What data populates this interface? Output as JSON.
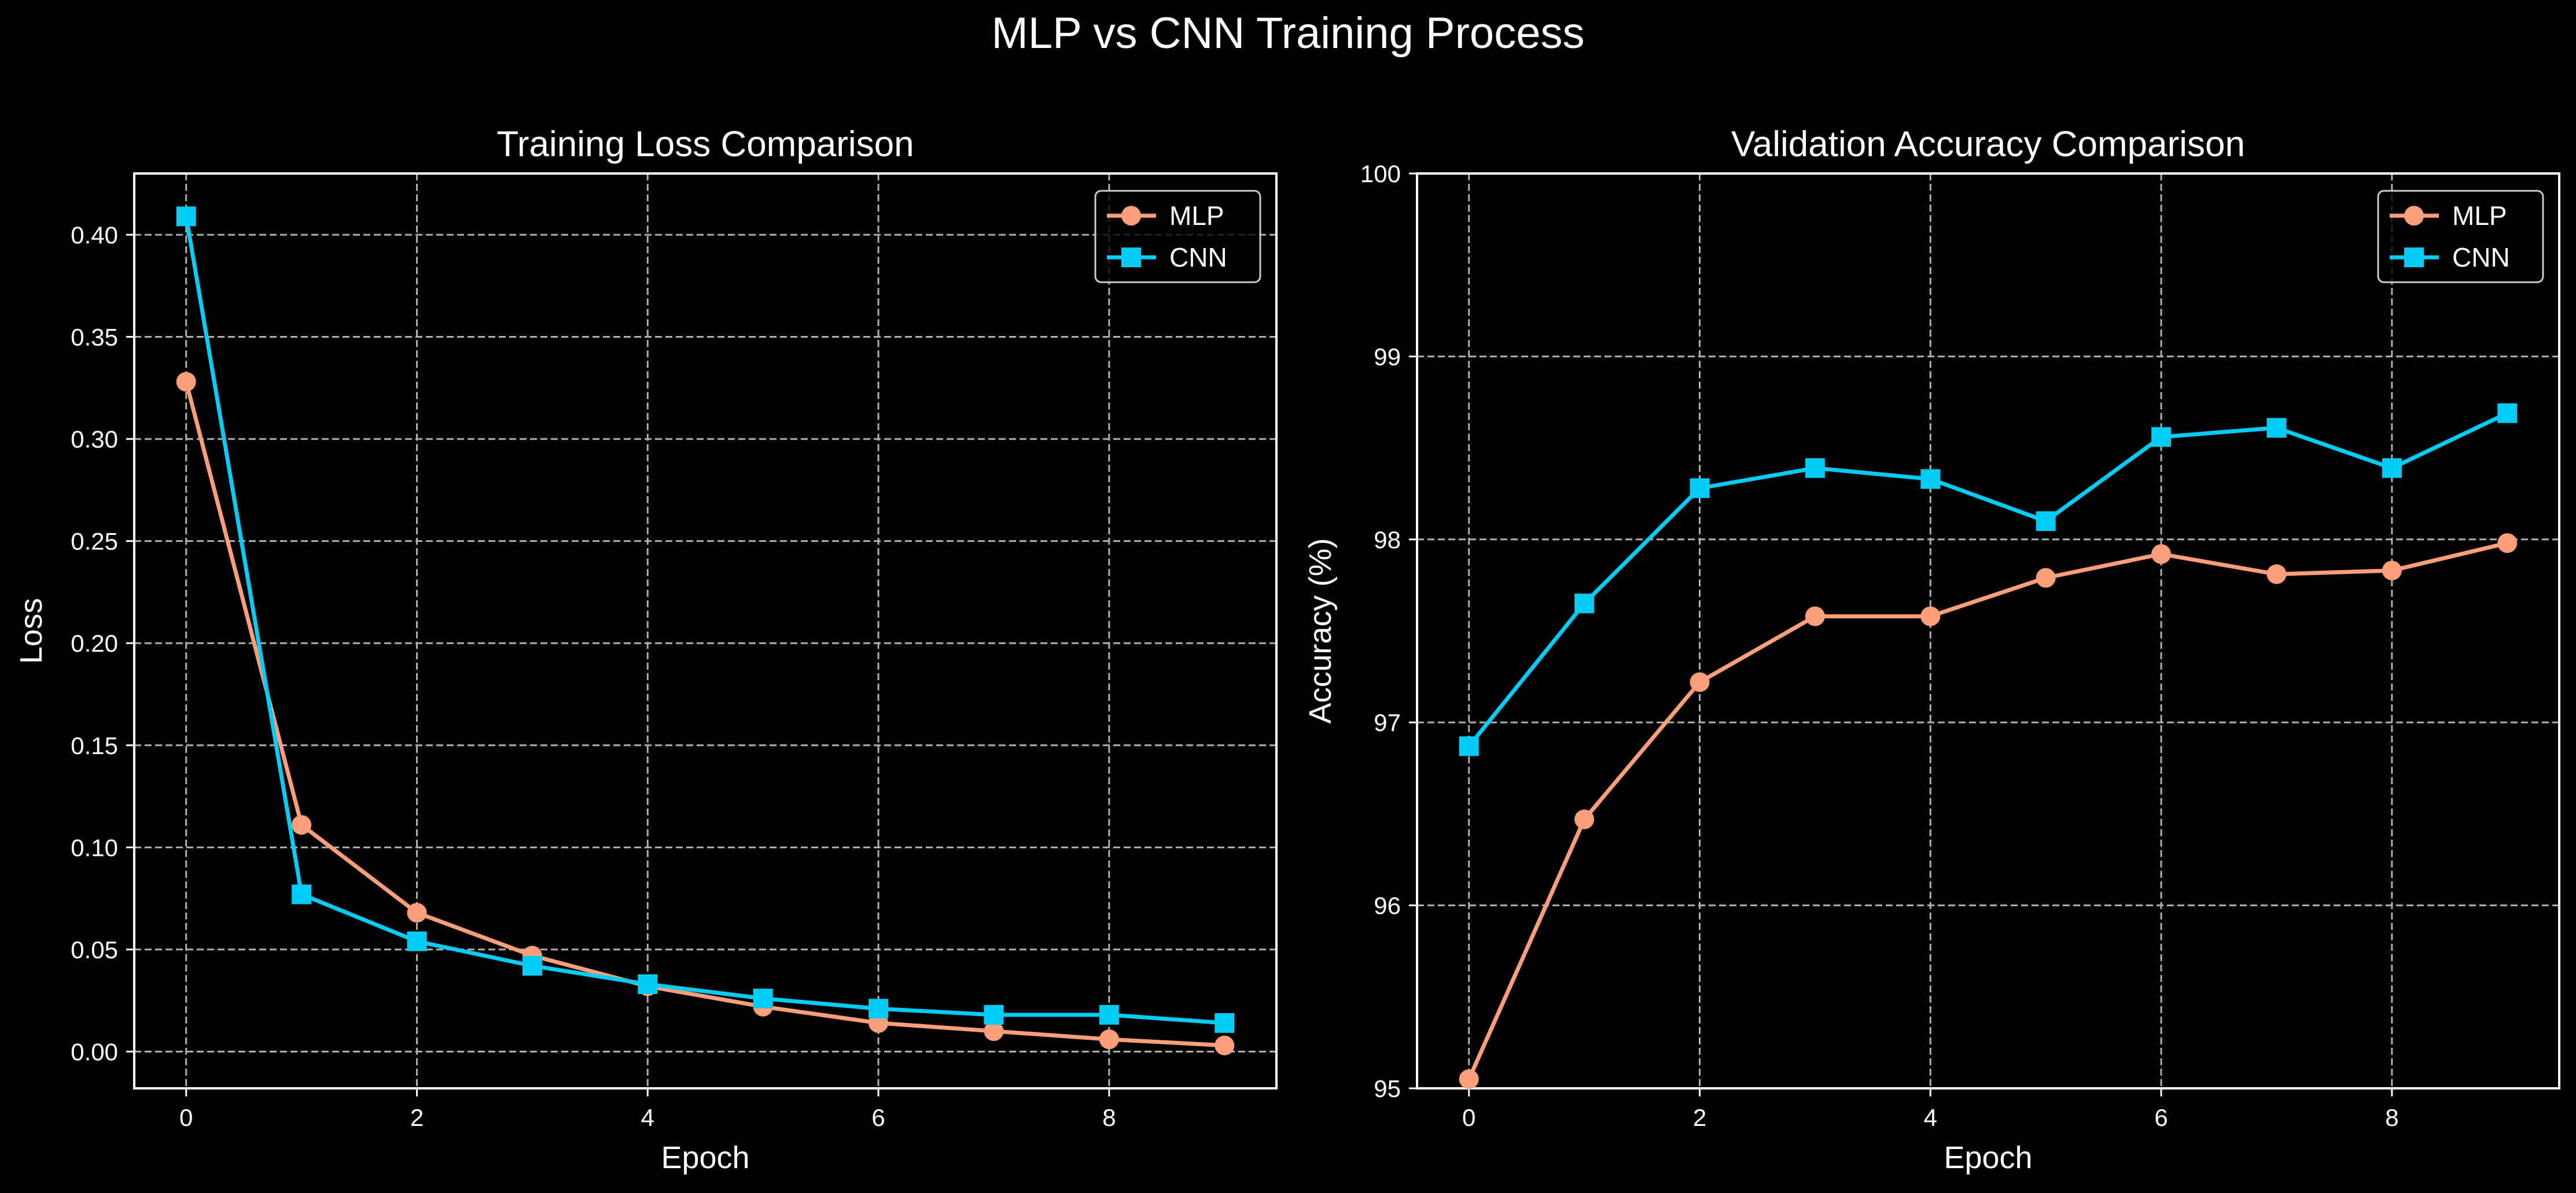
{
  "suptitle": "MLP vs CNN Training Process",
  "colors": {
    "background": "#000000",
    "axes": "#ffffff",
    "grid": "#b0b0b0",
    "mlp": "#ff9e7a",
    "cnn": "#00ccf5"
  },
  "chart_data": [
    {
      "type": "line",
      "title": "Training Loss Comparison",
      "xlabel": "Epoch",
      "ylabel": "Loss",
      "x": [
        0,
        1,
        2,
        3,
        4,
        5,
        6,
        7,
        8,
        9
      ],
      "xlim": [
        -0.45,
        9.45
      ],
      "ylim": [
        -0.018,
        0.43
      ],
      "xticks": [
        0,
        2,
        4,
        6,
        8
      ],
      "yticks": [
        0.0,
        0.05,
        0.1,
        0.15,
        0.2,
        0.25,
        0.3,
        0.35,
        0.4
      ],
      "ytick_labels": [
        "0.00",
        "0.05",
        "0.10",
        "0.15",
        "0.20",
        "0.25",
        "0.30",
        "0.35",
        "0.40"
      ],
      "grid": true,
      "legend_position": "upper right",
      "series": [
        {
          "name": "MLP",
          "marker": "circle",
          "color": "#ff9e7a",
          "values": [
            0.328,
            0.111,
            0.068,
            0.047,
            0.032,
            0.022,
            0.014,
            0.01,
            0.006,
            0.003
          ]
        },
        {
          "name": "CNN",
          "marker": "square",
          "color": "#00ccf5",
          "values": [
            0.409,
            0.077,
            0.054,
            0.042,
            0.033,
            0.026,
            0.021,
            0.018,
            0.018,
            0.014
          ]
        }
      ]
    },
    {
      "type": "line",
      "title": "Validation Accuracy Comparison",
      "xlabel": "Epoch",
      "ylabel": "Accuracy (%)",
      "x": [
        0,
        1,
        2,
        3,
        4,
        5,
        6,
        7,
        8,
        9
      ],
      "xlim": [
        -0.45,
        9.45
      ],
      "ylim": [
        95,
        100
      ],
      "xticks": [
        0,
        2,
        4,
        6,
        8
      ],
      "yticks": [
        95,
        96,
        97,
        98,
        99,
        100
      ],
      "ytick_labels": [
        "95",
        "96",
        "97",
        "98",
        "99",
        "100"
      ],
      "grid": true,
      "legend_position": "upper right",
      "series": [
        {
          "name": "MLP",
          "marker": "circle",
          "color": "#ff9e7a",
          "values": [
            95.05,
            96.47,
            97.22,
            97.58,
            97.58,
            97.79,
            97.92,
            97.81,
            97.83,
            97.98
          ]
        },
        {
          "name": "CNN",
          "marker": "square",
          "color": "#00ccf5",
          "values": [
            96.87,
            97.65,
            98.28,
            98.39,
            98.33,
            98.1,
            98.56,
            98.61,
            98.39,
            98.69
          ]
        }
      ]
    }
  ]
}
